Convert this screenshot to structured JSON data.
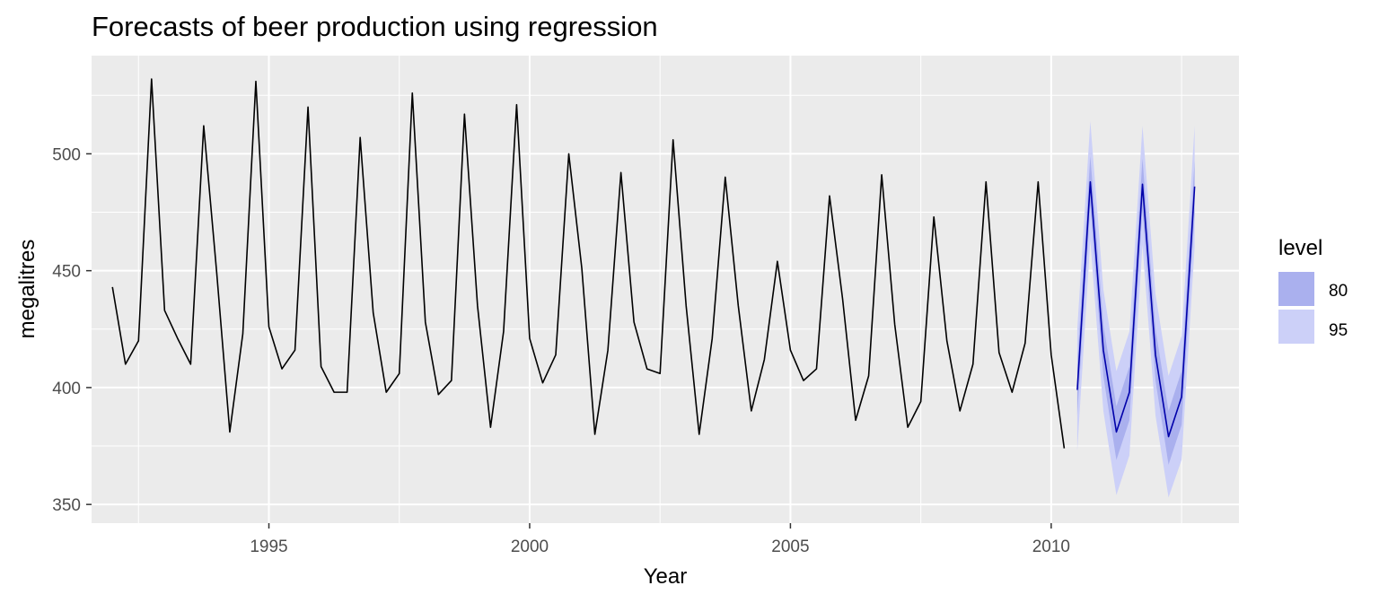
{
  "chart_data": {
    "type": "line",
    "title": "Forecasts of beer production using regression",
    "xlabel": "Year",
    "ylabel": "megalitres",
    "xlim": [
      1991.6,
      2013.6
    ],
    "ylim": [
      342,
      542
    ],
    "x_ticks": [
      1995,
      2000,
      2005,
      2010
    ],
    "x_tick_labels": [
      "1995",
      "2000",
      "2005",
      "2010"
    ],
    "y_ticks": [
      350,
      400,
      450,
      500
    ],
    "y_tick_labels": [
      "350",
      "400",
      "450",
      "500"
    ],
    "grid": true,
    "legend": {
      "title": "level",
      "placement": "right",
      "entries": [
        {
          "label": "80",
          "color": "#aab0ee"
        },
        {
          "label": "95",
          "color": "#ccd0f8"
        }
      ]
    },
    "series": [
      {
        "color": "#000000",
        "x_start": 1992.0,
        "x_step": 0.25,
        "values": [
          443,
          410,
          420,
          532,
          433,
          421,
          410,
          512,
          449,
          381,
          423,
          531,
          426,
          408,
          416,
          520,
          409,
          398,
          398,
          507,
          432,
          398,
          406,
          526,
          428,
          397,
          403,
          517,
          435,
          383,
          424,
          521,
          421,
          402,
          414,
          500,
          451,
          380,
          416,
          492,
          428,
          408,
          406,
          506,
          435,
          380,
          421,
          490,
          435,
          390,
          412,
          454,
          416,
          403,
          408,
          482,
          438,
          386,
          405,
          491,
          427,
          383,
          394,
          473,
          420,
          390,
          410,
          488,
          415,
          398,
          419,
          488,
          414,
          374
        ]
      },
      {
        "color": "#0000aa",
        "x_start": 2010.5,
        "x_step": 0.25,
        "values": [
          399,
          488,
          416,
          381,
          398,
          487,
          414,
          379,
          396,
          486
        ],
        "interval_80": {
          "lower": [
            388,
            478,
            405,
            369,
            386,
            476,
            403,
            367,
            384,
            474
          ],
          "upper": [
            410,
            499,
            427,
            392,
            409,
            498,
            425,
            390,
            407,
            497
          ]
        },
        "interval_95": {
          "lower": [
            373,
            463,
            390,
            354,
            371,
            461,
            388,
            353,
            369,
            460
          ],
          "upper": [
            425,
            514,
            442,
            407,
            424,
            512,
            440,
            405,
            422,
            512
          ]
        }
      }
    ]
  }
}
